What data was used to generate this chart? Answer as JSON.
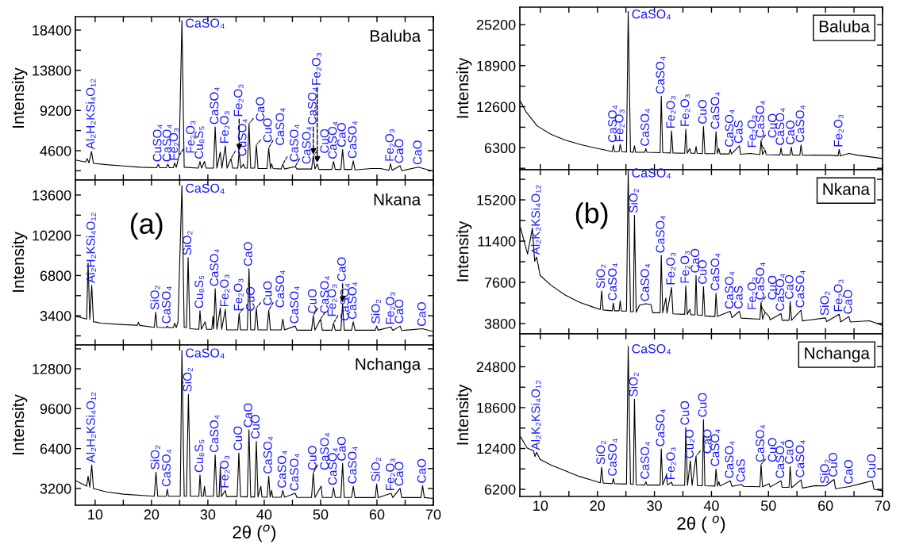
{
  "chart_data": [
    {
      "type": "line",
      "ylabel": "Intensity",
      "tick_labels": "y",
      "xlim": [
        6.5,
        70
      ],
      "ylim": [
        1240,
        19940
      ],
      "xticks": [
        10,
        {
          "value": 15,
          "label": null
        },
        20,
        {
          "value": 25,
          "label": null
        },
        30,
        {
          "value": 35,
          "label": null
        },
        40,
        {
          "value": 45,
          "label": null
        },
        50,
        {
          "value": 55,
          "label": null
        },
        60,
        {
          "value": 65,
          "label": null
        },
        70
      ],
      "yticks": [
        {
          "value": 2300,
          "label": null
        },
        4600,
        {
          "value": 6900,
          "label": null
        },
        9200,
        {
          "value": 11500,
          "label": null
        },
        13800,
        {
          "value": 16100,
          "label": null
        },
        18400
      ],
      "series": [
        {
          "color": "#000000",
          "x": [
            6.5,
            8.3,
            8.6,
            8.9,
            9.35,
            9.7,
            12,
            15,
            18,
            20.9,
            21.2,
            21.5,
            22.6,
            22.9,
            23.2,
            23.9,
            24.1,
            24.4,
            24.9,
            25.4,
            25.8,
            28.3,
            28.6,
            28.9,
            29.4,
            29.7,
            31.0,
            31.3,
            31.6,
            32.2,
            32.5,
            33.1,
            33.4,
            34.1,
            34.4,
            35.3,
            35.55,
            35.85,
            36.3,
            36.6,
            37.0,
            37.3,
            37.6,
            38.3,
            38.6,
            38.9,
            40.5,
            40.8,
            41.1,
            41.3,
            41.6,
            43.0,
            43.3,
            43.6,
            45.5,
            45.8,
            48.4,
            48.7,
            49.0,
            49.4,
            49.7,
            52.0,
            52.3,
            52.6,
            53.6,
            53.9,
            54.2,
            55.5,
            55.8,
            56.1,
            59.0,
            60.65,
            62.1,
            62.4,
            62.7,
            64.1,
            64.4,
            67.35,
            70
          ],
          "values": [
            3530,
            3300,
            3690,
            3200,
            4500,
            3150,
            3000,
            2850,
            2700,
            2650,
            3050,
            2650,
            2650,
            3050,
            2650,
            2650,
            3200,
            2700,
            4020,
            19500,
            2700,
            2600,
            3370,
            2600,
            3370,
            2600,
            2600,
            7320,
            2600,
            4440,
            2600,
            5150,
            2600,
            3690,
            2600,
            2600,
            4500,
            2600,
            3050,
            2600,
            2600,
            7680,
            2600,
            2600,
            5250,
            2550,
            2550,
            4920,
            2550,
            3090,
            2550,
            2500,
            3050,
            2500,
            2790,
            2500,
            2500,
            4020,
            2500,
            3090,
            2450,
            2450,
            3370,
            2450,
            2450,
            4730,
            2450,
            2450,
            3430,
            2400,
            2560,
            2560,
            2350,
            3090,
            2350,
            2880,
            2300,
            2720,
            2235
          ]
        }
      ],
      "annotations": [
        "Baluba",
        {
          "text": "CaSO₄",
          "x": 25.4,
          "y": 19500
        },
        {
          "text": "Al₂H₂KSi₄O₁₂",
          "x": 9.35,
          "y": 4500
        },
        {
          "text": "CuSO₄",
          "x": 21.2,
          "y": 3050
        },
        {
          "text": "CaSO₄",
          "x": 22.9,
          "y": 3050
        },
        {
          "text": "Fe₂O₃",
          "x": 24.1,
          "y": 3200
        },
        {
          "text": "Fe₂O₃",
          "x": 24.9,
          "y": 4020
        },
        {
          "text": "Cu₈S₅",
          "x": 28.6,
          "y": 3370
        },
        {
          "text": "CaSO₄",
          "x": 31.3,
          "y": 7320
        },
        {
          "text": "Fe₂O₃",
          "x": 33.1,
          "y": 5150
        },
        {
          "text": "CuSO₄",
          "x": 34.1,
          "y": 3690
        },
        {
          "text": "Fe₂O₃",
          "x": 35.55,
          "y": 4500
        },
        {
          "text": "CaO",
          "x": 37.3,
          "y": 7680
        },
        {
          "text": "CuO",
          "x": 38.6,
          "y": 5250
        },
        {
          "text": "CaSO₄",
          "x": 40.8,
          "y": 4920
        },
        {
          "text": "CaSO₄",
          "x": 43.3,
          "y": 3050
        },
        {
          "text": "CaSO₄",
          "x": 45.5,
          "y": 2790
        },
        {
          "text": "CuO",
          "x": 48.7,
          "y": 4020
        },
        {
          "text": "CaSO₄",
          "x": 48.7,
          "y": 4020
        },
        {
          "text": "Fe₂O₃",
          "x": 49.4,
          "y": 3090
        },
        {
          "text": "CaSO₄",
          "x": 52.3,
          "y": 3370
        },
        {
          "text": "CaO",
          "x": 53.9,
          "y": 4730
        },
        {
          "text": "CaSO₄",
          "x": 55.8,
          "y": 3430
        },
        {
          "text": "Fe₂O₃",
          "x": 62.4,
          "y": 3090
        },
        {
          "text": "CaO",
          "x": 64.1,
          "y": 2880
        },
        {
          "text": "CaO",
          "x": 67.35,
          "y": 2720
        }
      ]
    },
    {
      "type": "line",
      "ylabel": "Intensity",
      "tick_labels": "y",
      "xlim": [
        6.5,
        70
      ],
      "ylim": [
        930,
        14870
      ],
      "xticks": [
        10,
        {
          "value": 15,
          "label": null
        },
        20,
        {
          "value": 25,
          "label": null
        },
        30,
        {
          "value": 35,
          "label": null
        },
        40,
        {
          "value": 45,
          "label": null
        },
        50,
        {
          "value": 55,
          "label": null
        },
        60,
        {
          "value": 65,
          "label": null
        },
        70
      ],
      "yticks": [
        {
          "value": 1700,
          "label": null
        },
        3400,
        {
          "value": 5100,
          "label": null
        },
        6800,
        {
          "value": 8500,
          "label": null
        },
        10200,
        {
          "value": 11900,
          "label": null
        },
        13600
      ],
      "series": [
        {
          "color": "#000000",
          "x": [
            6.6,
            8.5,
            8.75,
            9.05,
            9.4,
            9.7,
            11,
            15,
            17.5,
            17.7,
            17.9,
            20.5,
            20.75,
            21.0,
            22.6,
            22.8,
            23.0,
            23.9,
            24.1,
            24.4,
            24.7,
            25.4,
            25.8,
            26.2,
            26.5,
            26.8,
            28.4,
            28.6,
            28.85,
            29.5,
            29.8,
            30.7,
            30.9,
            31.05,
            31.3,
            31.6,
            32.2,
            32.45,
            33.1,
            33.35,
            35.3,
            35.55,
            35.8,
            37.0,
            37.3,
            37.6,
            38.3,
            38.6,
            38.9,
            40.5,
            40.8,
            41.1,
            43.0,
            43.3,
            43.6,
            45.5,
            45.8,
            48.4,
            48.7,
            49.0,
            50.0,
            50.3,
            52.0,
            52.3,
            52.6,
            53.6,
            53.9,
            54.2,
            55.5,
            55.8,
            56.1,
            59.7,
            59.95,
            60.2,
            62.5,
            62.8,
            64.1,
            64.4,
            68.1,
            70
          ],
          "values": [
            3350,
            3120,
            7870,
            3100,
            5970,
            2900,
            2770,
            2650,
            2600,
            2840,
            2580,
            2420,
            3700,
            2420,
            2400,
            2530,
            2400,
            2400,
            2770,
            2400,
            2890,
            14400,
            2400,
            2400,
            8310,
            2300,
            2250,
            3820,
            2250,
            2890,
            2250,
            2250,
            3350,
            2300,
            5690,
            2250,
            4060,
            2250,
            3940,
            2200,
            2200,
            3590,
            2200,
            2200,
            7380,
            2200,
            2200,
            4060,
            2200,
            2200,
            3870,
            2200,
            2200,
            3120,
            2200,
            2530,
            2180,
            2180,
            3400,
            2180,
            3120,
            2180,
            2180,
            2770,
            2180,
            2180,
            4410,
            2180,
            2180,
            2890,
            2180,
            2180,
            2530,
            2180,
            2460,
            2150,
            2530,
            2150,
            2300,
            2070
          ]
        }
      ],
      "annotations": [
        "Nkana",
        "(a)",
        {
          "text": "CaSO₄",
          "x": 25.4,
          "y": 14400
        },
        {
          "text": "Al₂H₂KSi₄O₁₂",
          "x": 9.4,
          "y": 5970
        },
        {
          "text": "SiO₂",
          "x": 20.75,
          "y": 3700
        },
        {
          "text": "CaSO₄",
          "x": 22.8,
          "y": 2530
        },
        {
          "text": "SiO₂",
          "x": 26.5,
          "y": 8310
        },
        {
          "text": "Cu₈S₅",
          "x": 28.6,
          "y": 3820
        },
        {
          "text": "CaSO₄",
          "x": 31.3,
          "y": 5690
        },
        {
          "text": "Fe₂O₃",
          "x": 33.1,
          "y": 3940
        },
        {
          "text": "Fe₂O₃",
          "x": 35.55,
          "y": 3590
        },
        {
          "text": "CuO",
          "x": 35.55,
          "y": 3590
        },
        {
          "text": "CaO",
          "x": 37.3,
          "y": 7380
        },
        {
          "text": "CuO",
          "x": 38.6,
          "y": 4060
        },
        {
          "text": "CaSO₄",
          "x": 40.8,
          "y": 3870
        },
        {
          "text": "CaSO₄",
          "x": 45.5,
          "y": 2530
        },
        {
          "text": "CuO",
          "x": 48.7,
          "y": 3400
        },
        {
          "text": "CaSO₄",
          "x": 48.7,
          "y": 3400
        },
        {
          "text": "Fe₂O₃",
          "x": 50.0,
          "y": 3120
        },
        {
          "text": "CaSO₄",
          "x": 52.3,
          "y": 2770
        },
        {
          "text": "CaO",
          "x": 53.9,
          "y": 4410
        },
        {
          "text": "CaSO₄",
          "x": 55.8,
          "y": 2890
        },
        {
          "text": "SiO₂",
          "x": 59.95,
          "y": 2530
        },
        {
          "text": "Fe₂O₃",
          "x": 62.5,
          "y": 2460
        },
        {
          "text": "CaO",
          "x": 64.1,
          "y": 2530
        },
        {
          "text": "CaO",
          "x": 68.1,
          "y": 2300
        }
      ]
    },
    {
      "type": "line",
      "ylabel": "Intensity",
      "xlabel": "2θ ($^{o}$)",
      "xlim": [
        6.5,
        70
      ],
      "ylim": [
        1860,
        14710
      ],
      "xticks": [
        10,
        {
          "value": 15,
          "label": null
        },
        20,
        {
          "value": 25,
          "label": null
        },
        30,
        {
          "value": 35,
          "label": null
        },
        40,
        {
          "value": 45,
          "label": null
        },
        50,
        {
          "value": 55,
          "label": null
        },
        60,
        {
          "value": 65,
          "label": null
        },
        70
      ],
      "yticks": [
        3200,
        {
          "value": 4800,
          "label": null
        },
        6400,
        {
          "value": 8000,
          "label": null
        },
        9600,
        {
          "value": 11200,
          "label": null
        },
        12800,
        {
          "value": 14400,
          "label": null
        }
      ],
      "series": [
        {
          "color": "#000000",
          "x": [
            6.5,
            8.5,
            8.75,
            9.05,
            9.4,
            9.7,
            12,
            15,
            20.5,
            20.8,
            21.1,
            22.6,
            22.8,
            23.0,
            25.1,
            25.4,
            25.8,
            26.2,
            26.55,
            26.9,
            28.4,
            28.6,
            28.85,
            29.2,
            29.4,
            29.6,
            31.0,
            31.3,
            31.6,
            32.0,
            32.2,
            32.4,
            33.1,
            33.3,
            35.2,
            35.5,
            35.8,
            37.0,
            37.3,
            37.6,
            38.3,
            38.6,
            38.9,
            39.4,
            39.6,
            40.5,
            40.8,
            41.05,
            41.3,
            41.5,
            43.0,
            43.3,
            43.6,
            45.5,
            45.8,
            48.4,
            48.7,
            49.0,
            50.1,
            50.3,
            52.0,
            52.3,
            52.6,
            53.6,
            53.9,
            54.2,
            55.5,
            55.8,
            56.1,
            59.7,
            59.95,
            60.2,
            62.5,
            62.8,
            64.1,
            64.4,
            67.8,
            68.1,
            68.4,
            70
          ],
          "values": [
            3840,
            3380,
            4180,
            3300,
            5090,
            3200,
            2930,
            2740,
            2580,
            4520,
            2580,
            2580,
            3150,
            2580,
            2580,
            14280,
            2580,
            2580,
            10750,
            2580,
            2580,
            4290,
            2580,
            2580,
            3380,
            2580,
            2580,
            5890,
            2550,
            2550,
            4910,
            2550,
            3040,
            2550,
            2550,
            6050,
            2550,
            2520,
            7900,
            2520,
            2520,
            6980,
            2520,
            3380,
            2520,
            2500,
            4180,
            2500,
            3040,
            2500,
            2500,
            3040,
            2500,
            2810,
            2480,
            2480,
            4480,
            2480,
            3380,
            2480,
            2480,
            3270,
            2480,
            2480,
            5210,
            2480,
            2480,
            3380,
            2470,
            2470,
            3560,
            2470,
            2810,
            2470,
            3200,
            2470,
            2470,
            3430,
            2470,
            2400
          ]
        }
      ],
      "annotations": [
        "Nchanga",
        {
          "text": "CaSO₄",
          "x": 25.4,
          "y": 14280
        },
        {
          "text": "Al₂H₂KSi₄O₁₂",
          "x": 9.4,
          "y": 5090
        },
        {
          "text": "SiO₂",
          "x": 20.8,
          "y": 4520
        },
        {
          "text": "CaSO₄",
          "x": 22.8,
          "y": 3150
        },
        {
          "text": "SiO₂",
          "x": 26.55,
          "y": 10750
        },
        {
          "text": "Cu₈S₅",
          "x": 28.6,
          "y": 4290
        },
        {
          "text": "CaSO₄",
          "x": 31.3,
          "y": 5890
        },
        {
          "text": "Fe₂O₃",
          "x": 33.1,
          "y": 3040
        },
        {
          "text": "CuO",
          "x": 35.5,
          "y": 6050
        },
        {
          "text": "CaO",
          "x": 37.3,
          "y": 7900
        },
        {
          "text": "CuO",
          "x": 38.6,
          "y": 6980
        },
        {
          "text": "CaSO₄",
          "x": 40.8,
          "y": 4180
        },
        {
          "text": "CaSO₄",
          "x": 43.3,
          "y": 3040
        },
        {
          "text": "CaSO₄",
          "x": 45.5,
          "y": 2810
        },
        {
          "text": "CuO",
          "x": 48.7,
          "y": 4480
        },
        {
          "text": "CaSO₄",
          "x": 48.7,
          "y": 4480
        },
        {
          "text": "CaSO₄",
          "x": 52.3,
          "y": 3270
        },
        {
          "text": "CaO",
          "x": 53.9,
          "y": 5210
        },
        {
          "text": "CaSO₄",
          "x": 55.8,
          "y": 3380
        },
        {
          "text": "SiO₂",
          "x": 59.95,
          "y": 3560
        },
        {
          "text": "Fe₂O₃",
          "x": 62.5,
          "y": 2810
        },
        {
          "text": "CaO",
          "x": 64.1,
          "y": 3200
        },
        {
          "text": "CaO",
          "x": 68.1,
          "y": 3430
        }
      ]
    },
    {
      "type": "line",
      "ylabel": "Intensity",
      "tick_labels": "y",
      "xlim": [
        6.4,
        70
      ],
      "ylim": [
        2930,
        27880
      ],
      "xticks": [
        10,
        {
          "value": 15,
          "label": null
        },
        20,
        {
          "value": 25,
          "label": null
        },
        30,
        {
          "value": 35,
          "label": null
        },
        40,
        {
          "value": 45,
          "label": null
        },
        50,
        {
          "value": 55,
          "label": null
        },
        60,
        {
          "value": 65,
          "label": null
        },
        70
      ],
      "yticks": [
        {
          "value": 3150,
          "label": null
        },
        6300,
        {
          "value": 9450,
          "label": null
        },
        12600,
        {
          "value": 15750,
          "label": null
        },
        18900,
        {
          "value": 22050,
          "label": null
        },
        25200
      ],
      "series": [
        {
          "color": "#000000",
          "x": [
            6.5,
            7.5,
            9.45,
            11.9,
            14.4,
            16.9,
            19.4,
            21.4,
            22.6,
            22.8,
            23.0,
            23.8,
            24.0,
            24.3,
            25.1,
            25.4,
            25.8,
            26.3,
            26.5,
            26.7,
            28.3,
            28.5,
            28.7,
            31.0,
            31.2,
            31.45,
            32.8,
            33.0,
            33.25,
            35.3,
            35.5,
            35.75,
            36.2,
            36.4,
            37.1,
            37.3,
            37.5,
            38.4,
            38.6,
            38.85,
            40.6,
            40.8,
            41.05,
            41.3,
            41.5,
            43.1,
            43.3,
            43.5,
            44.9,
            45.1,
            46.8,
            48.5,
            48.7,
            48.95,
            49.4,
            49.6,
            52.0,
            52.2,
            52.4,
            53.8,
            54.0,
            54.2,
            55.5,
            55.7,
            55.95,
            57.7,
            59.1,
            60.8,
            62.2,
            62.4,
            62.6,
            64.1,
            65.6,
            70
          ],
          "values": [
            13420,
            11810,
            9640,
            8340,
            7470,
            6820,
            6300,
            5950,
            5700,
            6730,
            5700,
            5700,
            6820,
            5700,
            5650,
            27220,
            5650,
            5600,
            6600,
            5600,
            5600,
            6170,
            5600,
            5550,
            14200,
            5550,
            5500,
            8900,
            5500,
            5450,
            9160,
            5450,
            6170,
            5450,
            5450,
            6470,
            5450,
            5400,
            9560,
            5400,
            5400,
            8770,
            5400,
            6170,
            5350,
            5350,
            6040,
            5350,
            6600,
            5300,
            5430,
            5250,
            7430,
            5250,
            5950,
            5250,
            5200,
            6300,
            5200,
            5200,
            6390,
            5200,
            5150,
            6730,
            5150,
            5170,
            5170,
            5170,
            5050,
            6040,
            5050,
            5430,
            5170,
            4650
          ]
        }
      ],
      "annotations": [
        "Baluba",
        {
          "text": "CaSO₄",
          "x": 25.4,
          "y": 27220
        },
        {
          "text": "Fe₂O₃",
          "x": 24.0,
          "y": 6820
        },
        {
          "text": "CaSO₄",
          "x": 22.8,
          "y": 6730
        },
        {
          "text": "CaSO₄",
          "x": 28.5,
          "y": 6170
        },
        {
          "text": "CaSO₄",
          "x": 31.2,
          "y": 14200
        },
        {
          "text": "Fe₂O₃",
          "x": 33.0,
          "y": 8900
        },
        {
          "text": "Fe₂O₃",
          "x": 35.5,
          "y": 9160
        },
        {
          "text": "CuO",
          "x": 38.6,
          "y": 9560
        },
        {
          "text": "CaSO₄",
          "x": 40.8,
          "y": 8770
        },
        {
          "text": "CaSO₄",
          "x": 43.3,
          "y": 6040
        },
        {
          "text": "CaS",
          "x": 44.9,
          "y": 6600
        },
        {
          "text": "CaSO₄",
          "x": 48.7,
          "y": 7430
        },
        {
          "text": "CuO",
          "x": 48.7,
          "y": 7430
        },
        {
          "text": "Fe₂O₃",
          "x": 49.4,
          "y": 5950
        },
        {
          "text": "CaSO₄",
          "x": 52.2,
          "y": 6300
        },
        {
          "text": "CaO",
          "x": 54.0,
          "y": 6390
        },
        {
          "text": "CaSO₄",
          "x": 55.7,
          "y": 6730
        },
        {
          "text": "Fe₂O₃",
          "x": 62.4,
          "y": 6040
        }
      ]
    },
    {
      "type": "line",
      "ylabel": "Intensity",
      "tick_labels": "y",
      "xlim": [
        6.4,
        70
      ],
      "ylim": [
        2850,
        17980
      ],
      "xticks": [
        10,
        {
          "value": 15,
          "label": null
        },
        20,
        {
          "value": 25,
          "label": null
        },
        30,
        {
          "value": 35,
          "label": null
        },
        40,
        {
          "value": 45,
          "label": null
        },
        50,
        {
          "value": 55,
          "label": null
        },
        60,
        {
          "value": 65,
          "label": null
        },
        70
      ],
      "yticks": [
        3800,
        {
          "value": 5700,
          "label": null
        },
        7600,
        {
          "value": 9500,
          "label": null
        },
        11400,
        {
          "value": 13300,
          "label": null
        },
        15200,
        {
          "value": 17100,
          "label": null
        }
      ],
      "series": [
        {
          "color": "#000000",
          "x": [
            6.5,
            7.75,
            8.6,
            9.0,
            9.35,
            9.95,
            11.9,
            14.4,
            16.9,
            19.4,
            20.5,
            20.75,
            21.0,
            22.6,
            22.8,
            23.0,
            23.8,
            24.0,
            24.2,
            25.1,
            25.4,
            25.8,
            26.3,
            26.5,
            26.8,
            27.4,
            28.5,
            29.4,
            29.7,
            31.0,
            31.2,
            31.45,
            32.0,
            32.2,
            33.0,
            33.25,
            35.3,
            35.5,
            35.75,
            36.2,
            36.4,
            37.1,
            37.3,
            37.5,
            38.4,
            38.6,
            38.85,
            40.6,
            40.8,
            41.05,
            43.3,
            43.6,
            44.9,
            45.2,
            48.5,
            48.7,
            48.95,
            49.4,
            50.1,
            50.3,
            52.2,
            52.4,
            53.6,
            53.8,
            54.05,
            55.7,
            55.95,
            60.0,
            60.2,
            62.4,
            62.65,
            64.1,
            64.35,
            67.7,
            70
          ],
          "values": [
            12670,
            10200,
            12600,
            9540,
            9930,
            8240,
            7320,
            6410,
            5760,
            5290,
            5100,
            6810,
            5050,
            4980,
            5690,
            4980,
            4980,
            5890,
            4950,
            4950,
            17930,
            4900,
            4900,
            13770,
            4850,
            5500,
            5630,
            5550,
            4800,
            4800,
            10080,
            4800,
            6150,
            4750,
            7130,
            4700,
            4650,
            7280,
            4650,
            5110,
            4600,
            4600,
            8240,
            4600,
            4550,
            7200,
            4500,
            4450,
            6600,
            4450,
            4930,
            4350,
            4930,
            4300,
            4200,
            5760,
            4200,
            4850,
            4450,
            4150,
            4720,
            4100,
            4100,
            5820,
            4100,
            5030,
            4050,
            4320,
            3980,
            4660,
            3950,
            4450,
            3950,
            4060,
            3620
          ]
        }
      ],
      "annotations": [
        "Nkana",
        "(b)",
        {
          "text": "CaSO₄",
          "x": 25.4,
          "y": 17930
        },
        {
          "text": "Al₂K₂KSi₄O₁₂",
          "x": 9.35,
          "y": 9930
        },
        {
          "text": "SiO₂",
          "x": 20.75,
          "y": 6810
        },
        {
          "text": "CaSO₄",
          "x": 22.8,
          "y": 5690
        },
        {
          "text": "SiO₂",
          "x": 26.5,
          "y": 13770
        },
        {
          "text": "CaSO₄",
          "x": 28.5,
          "y": 5630
        },
        {
          "text": "CaSO₄",
          "x": 31.2,
          "y": 10080
        },
        {
          "text": "Fe₂O₃",
          "x": 33.0,
          "y": 7130
        },
        {
          "text": "Fe₂O₃",
          "x": 35.5,
          "y": 7280
        },
        {
          "text": "CaO",
          "x": 37.3,
          "y": 8240
        },
        {
          "text": "CuO",
          "x": 38.6,
          "y": 7200
        },
        {
          "text": "CaSO₄",
          "x": 40.8,
          "y": 6600
        },
        {
          "text": "CaSO₄",
          "x": 43.3,
          "y": 4930
        },
        {
          "text": "CaS",
          "x": 44.9,
          "y": 4930
        },
        {
          "text": "CaSO₄",
          "x": 48.7,
          "y": 5760
        },
        {
          "text": "CuO",
          "x": 48.7,
          "y": 5760
        },
        {
          "text": "Fe₂O₃",
          "x": 49.4,
          "y": 4850
        },
        {
          "text": "CaSO₄",
          "x": 52.2,
          "y": 4720
        },
        {
          "text": "CaO",
          "x": 53.8,
          "y": 5820
        },
        {
          "text": "CaSO₄",
          "x": 55.7,
          "y": 5030
        },
        {
          "text": "SiO₂",
          "x": 60.0,
          "y": 4320
        },
        {
          "text": "Fe₂O₃",
          "x": 62.4,
          "y": 4660
        },
        {
          "text": "CaO",
          "x": 64.1,
          "y": 4450
        }
      ]
    },
    {
      "type": "line",
      "ylabel": "Intensity",
      "xlabel": "2θ ( $^{o}$)",
      "xlim": [
        6.4,
        70
      ],
      "ylim": [
        5120,
        29790
      ],
      "xticks": [
        10,
        {
          "value": 15,
          "label": null
        },
        20,
        {
          "value": 25,
          "label": null
        },
        30,
        {
          "value": 35,
          "label": null
        },
        40,
        {
          "value": 45,
          "label": null
        },
        50,
        {
          "value": 55,
          "label": null
        },
        60,
        {
          "value": 65,
          "label": null
        },
        70
      ],
      "yticks": [
        6200,
        {
          "value": 9300,
          "label": null
        },
        12400,
        {
          "value": 15500,
          "label": null
        },
        18600,
        {
          "value": 21700,
          "label": null
        },
        24800,
        {
          "value": 27900,
          "label": null
        }
      ],
      "series": [
        {
          "color": "#000000",
          "x": [
            6.5,
            7.7,
            8.8,
            9.05,
            9.35,
            9.95,
            11.9,
            14.4,
            16.9,
            19.4,
            20.5,
            20.75,
            21.0,
            22.6,
            22.8,
            23.0,
            25.1,
            25.4,
            25.8,
            26.3,
            26.5,
            26.8,
            28.3,
            28.5,
            28.7,
            31.0,
            31.2,
            31.45,
            32.1,
            32.3,
            33.0,
            33.2,
            35.3,
            35.5,
            35.8,
            36.3,
            36.6,
            37.3,
            37.55,
            38.4,
            38.6,
            38.85,
            40.6,
            40.8,
            41.05,
            41.3,
            41.5,
            43.3,
            43.6,
            45.3,
            45.6,
            48.5,
            48.7,
            48.95,
            50.1,
            50.3,
            52.2,
            52.4,
            53.6,
            53.8,
            54.05,
            55.7,
            55.95,
            58.2,
            60.0,
            61.5,
            61.75,
            64.2,
            66.2,
            68.2,
            68.5,
            70
          ],
          "values": [
            14190,
            12460,
            12030,
            11170,
            11820,
            10740,
            9870,
            9010,
            8140,
            7500,
            7200,
            9570,
            7150,
            7060,
            7840,
            7060,
            7000,
            27930,
            7000,
            6950,
            19890,
            6900,
            6850,
            7370,
            6850,
            6850,
            12330,
            6850,
            8360,
            6850,
            7280,
            6800,
            6800,
            15570,
            6800,
            10520,
            6800,
            11250,
            6750,
            6750,
            16780,
            6750,
            6700,
            9310,
            6700,
            7370,
            6700,
            7500,
            6650,
            6930,
            6650,
            6600,
            9960,
            6600,
            7060,
            6550,
            7500,
            6500,
            6500,
            9660,
            6450,
            7630,
            6400,
            6760,
            6720,
            7710,
            6300,
            6630,
            7060,
            7500,
            6200,
            5980
          ]
        }
      ],
      "annotations": [
        "Nchanga",
        {
          "text": "CaSO₄",
          "x": 25.4,
          "y": 27930
        },
        {
          "text": "Al₂K₂KSi₄O₁₂",
          "x": 9.35,
          "y": 11820
        },
        {
          "text": "SiO₂",
          "x": 20.75,
          "y": 9570
        },
        {
          "text": "CaSO₄",
          "x": 22.8,
          "y": 7840
        },
        {
          "text": "SiO₂",
          "x": 26.5,
          "y": 19890
        },
        {
          "text": "CaSO₄",
          "x": 28.5,
          "y": 7370
        },
        {
          "text": "CaSO₄",
          "x": 31.2,
          "y": 12330
        },
        {
          "text": "Fe₂O₃",
          "x": 33.0,
          "y": 7280
        },
        {
          "text": "CuO",
          "x": 35.5,
          "y": 15570
        },
        {
          "text": "Cu₂O",
          "x": 36.3,
          "y": 10520
        },
        {
          "text": "CaO",
          "x": 37.3,
          "y": 11250
        },
        {
          "text": "CuO",
          "x": 38.6,
          "y": 16780
        },
        {
          "text": "CaSO₄",
          "x": 40.8,
          "y": 9310
        },
        {
          "text": "CaSO₄",
          "x": 43.3,
          "y": 7500
        },
        {
          "text": "CaS",
          "x": 45.3,
          "y": 6930
        },
        {
          "text": "CaSO₄",
          "x": 48.7,
          "y": 9960
        },
        {
          "text": "CuO",
          "x": 48.7,
          "y": 9960
        },
        {
          "text": "CaSO₄",
          "x": 52.2,
          "y": 7500
        },
        {
          "text": "CaO",
          "x": 53.8,
          "y": 9660
        },
        {
          "text": "CaSO₄",
          "x": 55.7,
          "y": 7630
        },
        {
          "text": "SiO₂",
          "x": 60.0,
          "y": 6720
        },
        {
          "text": "CuO",
          "x": 61.5,
          "y": 7710
        },
        {
          "text": "CaO",
          "x": 64.2,
          "y": 6630
        },
        {
          "text": "CuO",
          "x": 68.2,
          "y": 7500
        }
      ]
    }
  ]
}
